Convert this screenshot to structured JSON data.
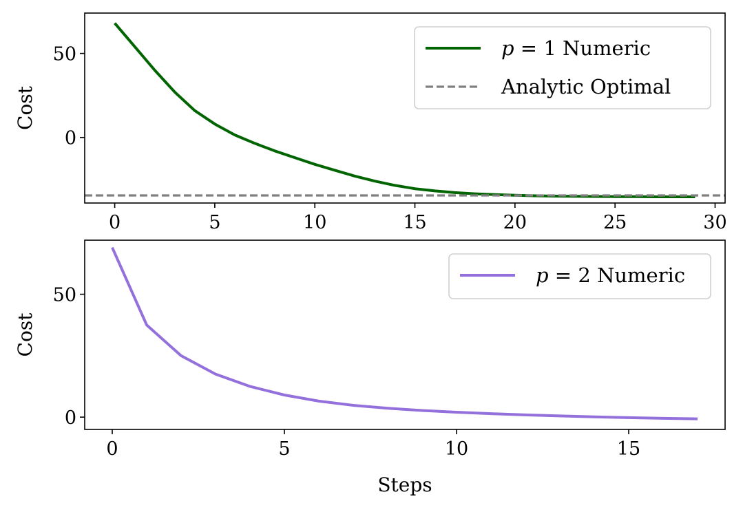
{
  "chart_data": [
    {
      "type": "line",
      "xlabel": "",
      "ylabel": "Cost",
      "xlim": [
        -1.5,
        30.5
      ],
      "ylim": [
        -39,
        74
      ],
      "xticks": [
        0,
        5,
        10,
        15,
        20,
        25,
        30
      ],
      "yticks": [
        0,
        50
      ],
      "grid": false,
      "legend_position": "top-right",
      "series": [
        {
          "name": "p = 1 Numeric",
          "legend_math": "p",
          "legend_rest": " = 1 Numeric",
          "color": "#006400",
          "style": "solid",
          "x": [
            0,
            1,
            2,
            3,
            4,
            5,
            6,
            7,
            8,
            9,
            10,
            11,
            12,
            13,
            14,
            15,
            16,
            17,
            18,
            19,
            20,
            21,
            22,
            23,
            24,
            25,
            26,
            27,
            28,
            29
          ],
          "y": [
            68,
            54,
            40,
            27,
            16,
            8,
            1.5,
            -3.5,
            -8,
            -12,
            -16,
            -19.5,
            -23,
            -26,
            -28.5,
            -30.5,
            -31.8,
            -32.8,
            -33.5,
            -34,
            -34.4,
            -34.7,
            -34.9,
            -35,
            -35.1,
            -35.2,
            -35.2,
            -35.3,
            -35.3,
            -35.3
          ]
        },
        {
          "name": "Analytic Optimal",
          "legend_math": "",
          "legend_rest": "Analytic Optimal",
          "color": "#808080",
          "style": "dashed",
          "hline": -34.5
        }
      ]
    },
    {
      "type": "line",
      "xlabel": "Steps",
      "ylabel": "Cost",
      "xlim": [
        -0.8,
        17.8
      ],
      "ylim": [
        -5,
        72
      ],
      "xticks": [
        0,
        5,
        10,
        15
      ],
      "yticks": [
        0,
        50
      ],
      "grid": false,
      "legend_position": "top-right",
      "series": [
        {
          "name": "p = 2 Numeric",
          "legend_math": "p",
          "legend_rest": " = 2 Numeric",
          "color": "#9370DB",
          "style": "solid",
          "x": [
            0,
            1,
            2,
            3,
            4,
            5,
            6,
            7,
            8,
            9,
            10,
            11,
            12,
            13,
            14,
            15,
            16,
            17
          ],
          "y": [
            69,
            37.5,
            25,
            17.5,
            12.5,
            9,
            6.5,
            4.8,
            3.6,
            2.7,
            2,
            1.4,
            0.9,
            0.5,
            0.1,
            -0.2,
            -0.5,
            -0.7
          ]
        }
      ]
    }
  ]
}
